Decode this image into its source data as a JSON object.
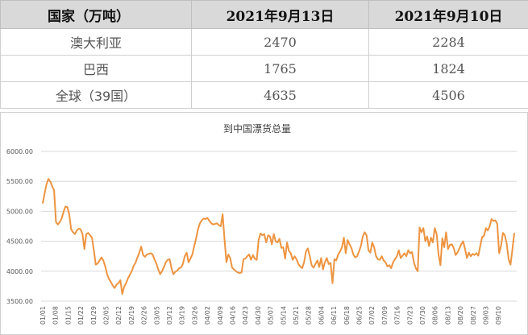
{
  "table": {
    "headers": [
      "国家（万吨）",
      "2021年9月13日",
      "2021年9月10日"
    ],
    "rows": [
      {
        "label": "澳大利亚",
        "v1": "2470",
        "v2": "2284"
      },
      {
        "label": "巴西",
        "v1": "1765",
        "v2": "1824"
      },
      {
        "label": "全球（39国）",
        "v1": "4635",
        "v2": "4506"
      }
    ]
  },
  "colors": {
    "line": "#ed9440",
    "grid": "#d9d9d9",
    "header_bg": "#d9d9d9"
  },
  "chart_data": {
    "type": "line",
    "title": "到中国漂货总量",
    "xlabel": "",
    "ylabel": "",
    "ylim": [
      3500,
      6000
    ],
    "yticks": [
      "6000.00",
      "5500.00",
      "5000.00",
      "4500.00",
      "4000.00",
      "3500.00"
    ],
    "ytick_values": [
      6000,
      5500,
      5000,
      4500,
      4000,
      3500
    ],
    "xticks": [
      "01/01",
      "01/08",
      "01/15",
      "01/22",
      "01/29",
      "02/05",
      "02/12",
      "02/19",
      "02/26",
      "03/05",
      "03/12",
      "03/19",
      "03/26",
      "04/02",
      "04/09",
      "04/16",
      "04/23",
      "04/30",
      "05/07",
      "05/14",
      "05/21",
      "05/28",
      "06/04",
      "06/11",
      "06/18",
      "06/25",
      "07/02",
      "07/09",
      "07/16",
      "07/23",
      "07/30",
      "08/06",
      "08/13",
      "08/20",
      "08/27",
      "09/03",
      "09/10"
    ],
    "grid": true,
    "legend": "none",
    "series": [
      {
        "values": [
          5130,
          5300,
          5450,
          5540,
          5500,
          5420,
          5350,
          4820,
          4780,
          4820,
          4880,
          4990,
          5080,
          5070,
          4950,
          4700,
          4650,
          4620,
          4680,
          4710,
          4700,
          4620,
          4370,
          4620,
          4640,
          4600,
          4560,
          4350,
          4110,
          4130,
          4180,
          4230,
          4180,
          4080,
          3950,
          3870,
          3820,
          3760,
          3720,
          3780,
          3800,
          3850,
          3620,
          3740,
          3800,
          3880,
          3940,
          4000,
          4090,
          4140,
          4230,
          4310,
          4410,
          4270,
          4240,
          4280,
          4290,
          4300,
          4280,
          4200,
          4130,
          4030,
          3950,
          4000,
          4070,
          4150,
          4190,
          4200,
          4050,
          3950,
          3990,
          4010,
          4050,
          4060,
          4120,
          4250,
          4310,
          4150,
          4210,
          4280,
          4420,
          4550,
          4700,
          4800,
          4850,
          4880,
          4870,
          4890,
          4840,
          4800,
          4780,
          4790,
          4800,
          4770,
          4750,
          4950,
          4530,
          4150,
          4280,
          4220,
          4060,
          4030,
          4000,
          3980,
          3970,
          3980,
          4200,
          4210,
          4250,
          4280,
          4190,
          4270,
          4210,
          4190,
          4520,
          4630,
          4600,
          4620,
          4480,
          4600,
          4580,
          4450,
          4620,
          4500,
          4480,
          4540,
          4390,
          4400,
          4210,
          4480,
          4340,
          4300,
          4190,
          4250,
          4200,
          4120,
          4080,
          4050,
          4150,
          4330,
          4380,
          4250,
          4100,
          4060,
          4120,
          4180,
          4070,
          4220,
          4030,
          4150,
          4220,
          4120,
          4140,
          3800,
          4200,
          4180,
          4280,
          4330,
          4400,
          4560,
          4300,
          4520,
          4450,
          4390,
          4280,
          4230,
          4250,
          4330,
          4420,
          4580,
          4650,
          4600,
          4350,
          4310,
          4480,
          4400,
          4250,
          4200,
          4190,
          4250,
          4180,
          4150,
          4080,
          4100,
          4050,
          4150,
          4200,
          4250,
          4350,
          4220,
          4260,
          4300,
          4250,
          4350,
          4300,
          4320,
          4150,
          4050,
          4000,
          4730,
          4650,
          4720,
          4500,
          4580,
          4420,
          4560,
          4480,
          4720,
          4620,
          4280,
          4100,
          4550,
          4400,
          4650,
          4370,
          4440,
          4450,
          4390,
          4270,
          4310,
          4380,
          4450,
          4500,
          4370,
          4220,
          4310,
          4250,
          4290,
          4270,
          4300,
          4260,
          4420,
          4570,
          4590,
          4720,
          4680,
          4750,
          4870,
          4840,
          4850,
          4790,
          4300,
          4420,
          4640,
          4600,
          4460,
          4200,
          4110,
          4360,
          4640
        ]
      }
    ]
  }
}
